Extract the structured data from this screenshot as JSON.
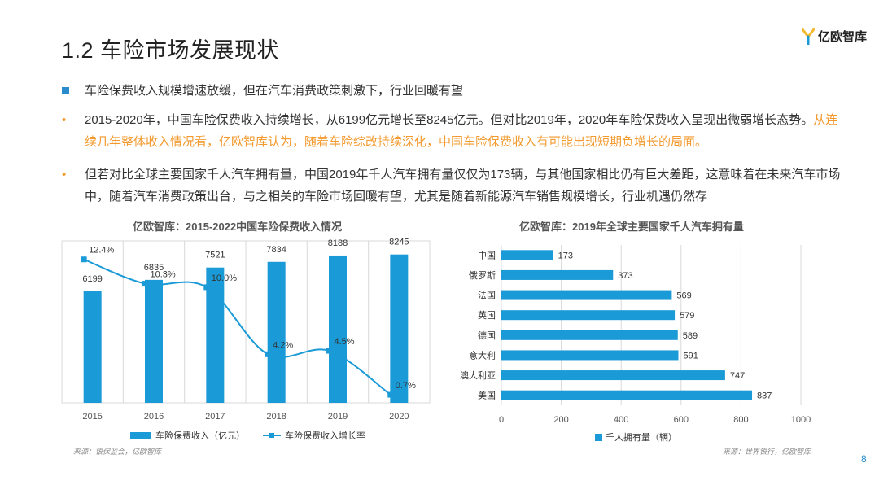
{
  "header": {
    "title": "1.2 车险市场发展现状",
    "logo_text": "亿欧智库",
    "logo_icon": "y-logo-icon"
  },
  "bullets": [
    {
      "marker": "square",
      "text": "车险保费收入规模增速放缓，但在汽车消费政策刺激下，行业回暖有望",
      "highlight": ""
    },
    {
      "marker": "dot",
      "text": "2015-2020年，中国车险保费收入持续增长，从6199亿元增长至8245亿元。但对比2019年，2020年车险保费收入呈现出微弱增长态势。",
      "highlight": "从连续几年整体收入情况看，亿欧智库认为，随着车险综改持续深化，中国车险保费收入有可能出现短期负增长的局面。"
    },
    {
      "marker": "dot",
      "text": "但若对比全球主要国家千人汽车拥有量，中国2019年千人汽车拥有量仅仅为173辆，与其他国家相比仍有巨大差距，这意味着在未来汽车市场中，随着汽车消费政策出台，与之相关的车险市场回暖有望，尤其是随着新能源汽车销售规模增长，行业机遇仍然存",
      "highlight": ""
    }
  ],
  "left_chart_title": "亿欧智库：2015-2022中国车险保费收入情况",
  "right_chart_title": "亿欧智库：2019年全球主要国家千人汽车拥有量",
  "left_source": "来源：银保监会，亿欧智库",
  "right_source": "来源：世界银行，亿欧智库",
  "page_number": "8",
  "colors": {
    "bar": "#1a9ad6",
    "line": "#1a9ad6",
    "accent": "#2a8ccc",
    "highlight": "#f39a2e"
  },
  "chart_data": [
    {
      "type": "bar",
      "title": "亿欧智库：2015-2022中国车险保费收入情况",
      "categories": [
        "2015",
        "2016",
        "2017",
        "2018",
        "2019",
        "2020"
      ],
      "series": [
        {
          "name": "车险保费收入（亿元）",
          "type": "bar",
          "values": [
            6199,
            6835,
            7521,
            7834,
            8188,
            8245
          ]
        },
        {
          "name": "车险保费收入增长率",
          "type": "line",
          "values": [
            12.4,
            10.3,
            10.0,
            4.2,
            4.5,
            0.7
          ],
          "unit": "%"
        }
      ],
      "bar_labels": [
        "6199",
        "6835",
        "7521",
        "7834",
        "8188",
        "8245"
      ],
      "line_labels": [
        "12.4%",
        "10.3%",
        "10.0%",
        "4.2%",
        "4.5%",
        "0.7%"
      ],
      "ylim": [
        0,
        9000
      ],
      "y2lim": [
        0,
        14
      ],
      "grid": "vertical",
      "legend": "bottom"
    },
    {
      "type": "bar",
      "orientation": "horizontal",
      "title": "亿欧智库：2019年全球主要国家千人汽车拥有量",
      "categories": [
        "中国",
        "俄罗斯",
        "法国",
        "英国",
        "德国",
        "意大利",
        "澳大利亚",
        "美国"
      ],
      "series": [
        {
          "name": "千人拥有量（辆）",
          "values": [
            173,
            373,
            569,
            579,
            589,
            591,
            747,
            837
          ]
        }
      ],
      "xlim": [
        0,
        1000
      ],
      "xticks": [
        "0",
        "200",
        "400",
        "600",
        "800",
        "1000"
      ],
      "grid": "vertical",
      "legend": "bottom"
    }
  ]
}
